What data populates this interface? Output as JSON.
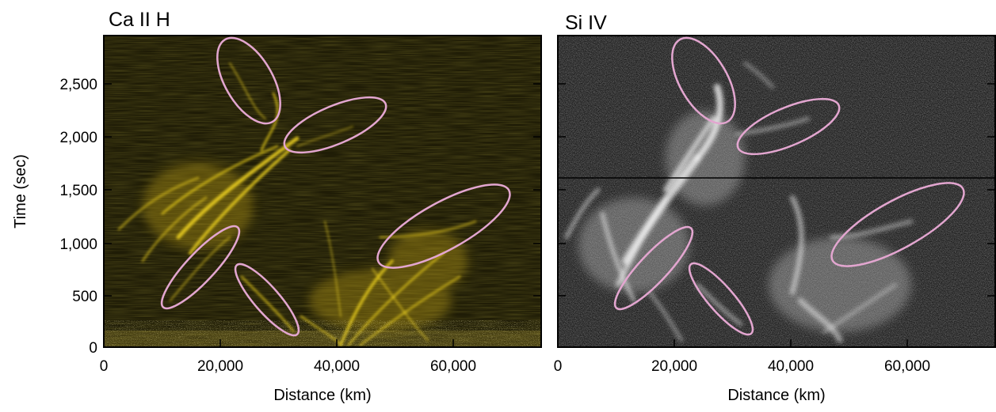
{
  "figure": {
    "y_axis_label": "Time (sec)",
    "y_ticks": [
      "0",
      "500",
      "1,000",
      "1,500",
      "2,000",
      "2,500"
    ],
    "y_tick_values": [
      0,
      500,
      1000,
      1500,
      2000,
      2500
    ],
    "panels": [
      {
        "title": "Ca II H",
        "x_axis_label": "Distance (km)",
        "x_ticks": [
          "0",
          "20,000",
          "40,000",
          "60,000"
        ],
        "x_tick_values": [
          0,
          20000,
          40000,
          60000
        ],
        "xlim": [
          0,
          75000
        ],
        "ylim": [
          0,
          2950
        ],
        "image_tint": "#e6c812",
        "background_color": "#1f1c06"
      },
      {
        "title": "Si IV",
        "x_axis_label": "Distance (km)",
        "x_ticks": [
          "0",
          "20,000",
          "40,000",
          "60,000"
        ],
        "x_tick_values": [
          0,
          20000,
          40000,
          60000
        ],
        "xlim": [
          0,
          75000
        ],
        "ylim": [
          0,
          2950
        ],
        "image_tint": "#ffffff",
        "background_color": "#141414"
      }
    ],
    "highlight_ellipse_color": "#e3a6d0"
  }
}
